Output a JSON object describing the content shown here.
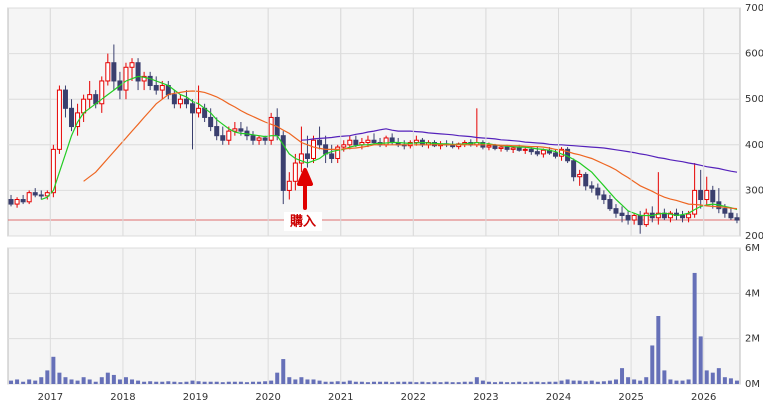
{
  "chart_data": [
    {
      "type": "candlestick",
      "open": [
        280,
        270,
        280,
        275,
        295,
        290,
        288,
        295,
        390,
        520,
        480,
        440,
        470,
        500,
        510,
        490,
        540,
        580,
        540,
        520,
        570,
        580,
        540,
        550,
        530,
        520,
        530,
        510,
        490,
        500,
        490,
        470,
        480,
        460,
        440,
        420,
        410,
        430,
        435,
        430,
        420,
        410,
        415,
        410,
        460,
        420,
        300,
        320,
        360,
        380,
        370,
        410,
        400,
        380,
        370,
        395,
        400,
        410,
        400,
        405,
        410,
        405,
        400,
        415,
        405,
        400,
        398,
        405,
        410,
        400,
        405,
        398,
        402,
        400,
        396,
        402,
        405,
        400,
        405,
        395,
        398,
        392,
        395,
        390,
        393,
        388,
        390,
        385,
        380,
        388,
        382,
        375,
        390,
        365,
        330,
        335,
        310,
        305,
        290,
        280,
        260,
        250,
        245,
        235,
        245,
        225,
        250,
        240,
        250,
        240,
        250,
        245,
        240,
        248,
        300,
        280,
        300,
        275,
        260,
        250,
        240
      ],
      "high": [
        290,
        285,
        290,
        300,
        305,
        300,
        300,
        400,
        530,
        530,
        500,
        490,
        510,
        540,
        520,
        550,
        600,
        620,
        560,
        580,
        590,
        590,
        560,
        560,
        550,
        540,
        540,
        520,
        510,
        520,
        500,
        530,
        490,
        480,
        460,
        440,
        440,
        450,
        450,
        440,
        430,
        420,
        420,
        470,
        480,
        430,
        340,
        380,
        440,
        420,
        420,
        440,
        420,
        400,
        400,
        410,
        420,
        420,
        415,
        420,
        425,
        415,
        420,
        425,
        415,
        410,
        410,
        420,
        415,
        410,
        410,
        408,
        410,
        408,
        405,
        410,
        412,
        480,
        410,
        405,
        402,
        400,
        400,
        398,
        400,
        395,
        395,
        395,
        392,
        395,
        390,
        395,
        395,
        370,
        345,
        340,
        320,
        315,
        300,
        290,
        270,
        265,
        255,
        250,
        255,
        260,
        265,
        340,
        260,
        255,
        260,
        255,
        255,
        360,
        345,
        330,
        310,
        305,
        270,
        262,
        250
      ],
      "low": [
        265,
        262,
        270,
        270,
        285,
        280,
        280,
        285,
        380,
        460,
        430,
        420,
        450,
        480,
        480,
        470,
        530,
        520,
        500,
        500,
        540,
        520,
        520,
        520,
        510,
        500,
        500,
        480,
        480,
        480,
        390,
        460,
        450,
        430,
        410,
        400,
        400,
        420,
        420,
        410,
        400,
        400,
        400,
        400,
        410,
        270,
        280,
        300,
        340,
        350,
        360,
        390,
        360,
        360,
        360,
        385,
        390,
        395,
        390,
        395,
        400,
        395,
        395,
        400,
        395,
        390,
        392,
        398,
        395,
        392,
        395,
        390,
        395,
        392,
        390,
        395,
        396,
        395,
        390,
        388,
        388,
        385,
        385,
        382,
        385,
        380,
        378,
        375,
        372,
        378,
        370,
        365,
        360,
        320,
        310,
        300,
        295,
        280,
        270,
        255,
        240,
        230,
        225,
        225,
        205,
        220,
        230,
        225,
        235,
        230,
        235,
        230,
        230,
        240,
        260,
        265,
        260,
        250,
        240,
        235,
        228
      ],
      "close": [
        270,
        280,
        275,
        295,
        290,
        288,
        295,
        390,
        520,
        480,
        440,
        470,
        500,
        510,
        490,
        540,
        580,
        540,
        520,
        570,
        580,
        540,
        550,
        530,
        520,
        530,
        510,
        490,
        500,
        490,
        470,
        480,
        460,
        440,
        420,
        410,
        430,
        435,
        430,
        420,
        410,
        415,
        410,
        460,
        420,
        300,
        320,
        360,
        380,
        370,
        410,
        400,
        380,
        370,
        395,
        400,
        410,
        400,
        405,
        410,
        405,
        400,
        415,
        405,
        400,
        398,
        405,
        410,
        400,
        405,
        398,
        402,
        400,
        396,
        402,
        405,
        400,
        405,
        395,
        398,
        392,
        395,
        390,
        393,
        388,
        390,
        385,
        380,
        388,
        382,
        375,
        390,
        365,
        330,
        335,
        310,
        305,
        290,
        280,
        260,
        250,
        245,
        235,
        245,
        225,
        250,
        240,
        250,
        240,
        250,
        245,
        240,
        248,
        300,
        280,
        300,
        275,
        260,
        250,
        240,
        235
      ],
      "up_color": "#e60000",
      "down_color": "#3a3f6e",
      "series": [
        {
          "color": "#22cc22",
          "values": [
            null,
            null,
            null,
            null,
            null,
            280,
            285,
            300,
            340,
            380,
            420,
            450,
            470,
            480,
            490,
            500,
            510,
            520,
            530,
            540,
            545,
            550,
            548,
            545,
            540,
            535,
            530,
            520,
            510,
            505,
            495,
            490,
            480,
            470,
            455,
            445,
            435,
            428,
            425,
            424,
            422,
            420,
            418,
            420,
            420,
            400,
            380,
            370,
            365,
            360,
            365,
            370,
            380,
            385,
            388,
            390,
            395,
            398,
            400,
            400,
            402,
            403,
            404,
            405,
            405,
            404,
            403,
            404,
            405,
            404,
            403,
            402,
            402,
            401,
            401,
            402,
            403,
            405,
            403,
            402,
            400,
            398,
            397,
            396,
            395,
            395,
            393,
            391,
            390,
            388,
            385,
            380,
            375,
            368,
            360,
            350,
            340,
            325,
            310,
            295,
            280,
            268,
            255,
            250,
            245,
            245,
            245,
            248,
            250,
            248,
            245,
            247,
            250,
            258,
            265,
            268,
            270,
            268,
            265,
            262,
            258
          ]
        },
        {
          "color": "#ee6622",
          "values": [
            null,
            null,
            null,
            null,
            null,
            null,
            null,
            null,
            null,
            null,
            null,
            null,
            320,
            330,
            340,
            355,
            370,
            385,
            400,
            415,
            430,
            445,
            460,
            475,
            490,
            500,
            510,
            513,
            515,
            517,
            518,
            517,
            515,
            510,
            505,
            498,
            490,
            483,
            475,
            468,
            462,
            456,
            450,
            445,
            440,
            432,
            425,
            415,
            405,
            400,
            395,
            392,
            390,
            390,
            390,
            391,
            392,
            393,
            395,
            397,
            400,
            400,
            400,
            400,
            400,
            400,
            400,
            400,
            400,
            400,
            400,
            400,
            400,
            400,
            400,
            400,
            400,
            400,
            400,
            400,
            400,
            399,
            399,
            398,
            398,
            397,
            396,
            396,
            395,
            393,
            390,
            388,
            385,
            381,
            378,
            374,
            370,
            364,
            358,
            352,
            345,
            336,
            328,
            319,
            310,
            304,
            298,
            291,
            285,
            281,
            278,
            274,
            270,
            269,
            268,
            266,
            265,
            264,
            263,
            261,
            260
          ]
        },
        {
          "color": "#5522bb",
          "values": [
            null,
            null,
            null,
            null,
            null,
            null,
            null,
            null,
            null,
            null,
            null,
            null,
            null,
            null,
            null,
            null,
            null,
            null,
            null,
            null,
            null,
            null,
            null,
            null,
            null,
            null,
            null,
            null,
            null,
            null,
            null,
            null,
            null,
            null,
            null,
            null,
            null,
            null,
            null,
            null,
            null,
            null,
            null,
            null,
            null,
            null,
            null,
            null,
            410,
            411,
            413,
            414,
            415,
            416,
            418,
            419,
            420,
            423,
            425,
            428,
            430,
            433,
            435,
            432,
            430,
            430,
            430,
            429,
            428,
            426,
            425,
            424,
            423,
            422,
            420,
            419,
            418,
            416,
            415,
            414,
            413,
            411,
            410,
            409,
            408,
            406,
            405,
            404,
            403,
            401,
            400,
            400,
            399,
            398,
            397,
            396,
            395,
            394,
            393,
            391,
            389,
            387,
            385,
            383,
            380,
            378,
            375,
            372,
            370,
            367,
            365,
            363,
            360,
            358,
            355,
            352,
            350,
            348,
            345,
            342,
            340
          ]
        }
      ],
      "reference_line": 235,
      "reference_color": "#e07070",
      "annotation": "購入",
      "ylim": [
        200,
        700
      ],
      "yticks": [
        200,
        300,
        400,
        500,
        600,
        700
      ],
      "grid": true
    },
    {
      "type": "bar",
      "categories": [
        null,
        null,
        null,
        null,
        null,
        null,
        null,
        "2017",
        null,
        null,
        null,
        null,
        null,
        null,
        null,
        null,
        null,
        null,
        null,
        "2018",
        null,
        null,
        null,
        null,
        null,
        null,
        null,
        null,
        null,
        null,
        null,
        "2019",
        null,
        null,
        null,
        null,
        null,
        null,
        null,
        null,
        null,
        null,
        null,
        "2020",
        null,
        null,
        null,
        null,
        null,
        null,
        null,
        null,
        null,
        null,
        null,
        "2021",
        null,
        null,
        null,
        null,
        null,
        null,
        null,
        null,
        null,
        null,
        null,
        "2022",
        null,
        null,
        null,
        null,
        null,
        null,
        null,
        null,
        null,
        null,
        null,
        "2023",
        null,
        null,
        null,
        null,
        null,
        null,
        null,
        null,
        null,
        null,
        null,
        "2024",
        null,
        null,
        null,
        null,
        null,
        null,
        null,
        null,
        null,
        null,
        null,
        "2025",
        null,
        null,
        null,
        null,
        null,
        null,
        null,
        null,
        null,
        null,
        null,
        "2026",
        null,
        null,
        null,
        null,
        null
      ],
      "values": [
        150000,
        200000,
        100000,
        200000,
        150000,
        300000,
        600000,
        1200000,
        500000,
        300000,
        200000,
        150000,
        300000,
        200000,
        100000,
        300000,
        500000,
        400000,
        200000,
        300000,
        200000,
        150000,
        100000,
        120000,
        100000,
        100000,
        120000,
        100000,
        80000,
        100000,
        150000,
        120000,
        100000,
        100000,
        100000,
        80000,
        100000,
        100000,
        100000,
        80000,
        100000,
        100000,
        120000,
        150000,
        500000,
        1100000,
        300000,
        200000,
        300000,
        200000,
        200000,
        150000,
        100000,
        100000,
        120000,
        100000,
        150000,
        100000,
        100000,
        80000,
        100000,
        100000,
        100000,
        80000,
        100000,
        100000,
        100000,
        80000,
        100000,
        80000,
        100000,
        80000,
        100000,
        80000,
        80000,
        100000,
        100000,
        300000,
        150000,
        100000,
        80000,
        100000,
        80000,
        80000,
        100000,
        80000,
        100000,
        100000,
        80000,
        100000,
        100000,
        150000,
        200000,
        150000,
        150000,
        120000,
        150000,
        100000,
        120000,
        150000,
        200000,
        700000,
        300000,
        200000,
        150000,
        300000,
        1700000,
        3000000,
        600000,
        200000,
        150000,
        150000,
        200000,
        4900000,
        2100000,
        600000,
        500000,
        700000,
        300000,
        250000,
        150000
      ],
      "color": "#6670b8",
      "ylim": [
        0,
        6000000
      ],
      "yticks": [
        {
          "value": 0,
          "label": "0M"
        },
        {
          "value": 2000000,
          "label": "2M"
        },
        {
          "value": 4000000,
          "label": "4M"
        },
        {
          "value": 6000000,
          "label": "6M"
        }
      ],
      "grid": true
    }
  ]
}
